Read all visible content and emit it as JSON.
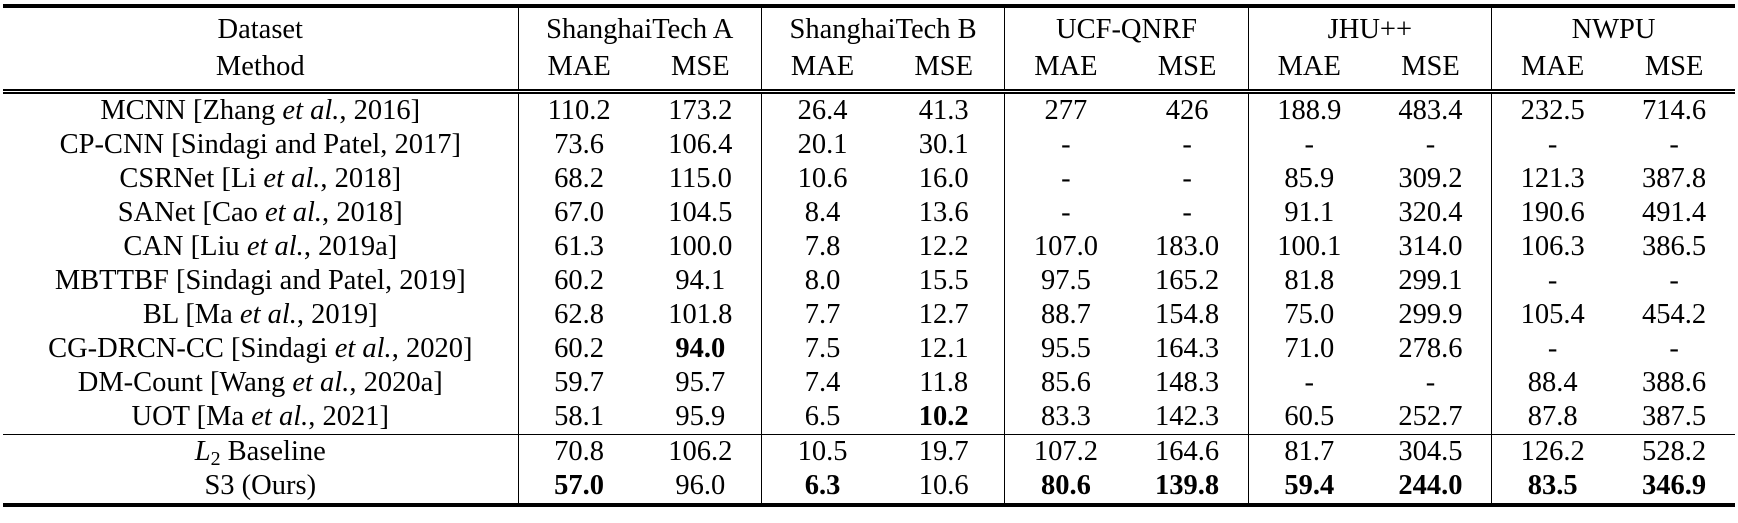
{
  "header": {
    "dataset_label": "Dataset",
    "method_label": "Method",
    "datasets": [
      "ShanghaiTech A",
      "ShanghaiTech B",
      "UCF-QNRF",
      "JHU++",
      "NWPU"
    ],
    "metrics": [
      "MAE",
      "MSE"
    ]
  },
  "rows": [
    {
      "pre": "MCNN [Zhang ",
      "et": "et al.",
      "post": ", 2016]",
      "values": [
        "110.2",
        "173.2",
        "26.4",
        "41.3",
        "277",
        "426",
        "188.9",
        "483.4",
        "232.5",
        "714.6"
      ],
      "bold": []
    },
    {
      "pre": "CP-CNN [Sindagi and Patel, 2017]",
      "et": "",
      "post": "",
      "values": [
        "73.6",
        "106.4",
        "20.1",
        "30.1",
        "-",
        "-",
        "-",
        "-",
        "-",
        "-"
      ],
      "bold": []
    },
    {
      "pre": "CSRNet [Li ",
      "et": "et al.",
      "post": ", 2018]",
      "values": [
        "68.2",
        "115.0",
        "10.6",
        "16.0",
        "-",
        "-",
        "85.9",
        "309.2",
        "121.3",
        "387.8"
      ],
      "bold": []
    },
    {
      "pre": "SANet [Cao ",
      "et": "et al.",
      "post": ", 2018]",
      "values": [
        "67.0",
        "104.5",
        "8.4",
        "13.6",
        "-",
        "-",
        "91.1",
        "320.4",
        "190.6",
        "491.4"
      ],
      "bold": []
    },
    {
      "pre": "CAN [Liu ",
      "et": "et al.",
      "post": ", 2019a]",
      "values": [
        "61.3",
        "100.0",
        "7.8",
        "12.2",
        "107.0",
        "183.0",
        "100.1",
        "314.0",
        "106.3",
        "386.5"
      ],
      "bold": []
    },
    {
      "pre": "MBTTBF [Sindagi and Patel, 2019]",
      "et": "",
      "post": "",
      "values": [
        "60.2",
        "94.1",
        "8.0",
        "15.5",
        "97.5",
        "165.2",
        "81.8",
        "299.1",
        "-",
        "-"
      ],
      "bold": []
    },
    {
      "pre": "BL [Ma ",
      "et": "et al.",
      "post": ", 2019]",
      "values": [
        "62.8",
        "101.8",
        "7.7",
        "12.7",
        "88.7",
        "154.8",
        "75.0",
        "299.9",
        "105.4",
        "454.2"
      ],
      "bold": []
    },
    {
      "pre": "CG-DRCN-CC [Sindagi ",
      "et": "et al.",
      "post": ", 2020]",
      "values": [
        "60.2",
        "94.0",
        "7.5",
        "12.1",
        "95.5",
        "164.3",
        "71.0",
        "278.6",
        "-",
        "-"
      ],
      "bold": [
        1
      ]
    },
    {
      "pre": "DM-Count [Wang ",
      "et": "et al.",
      "post": ", 2020a]",
      "values": [
        "59.7",
        "95.7",
        "7.4",
        "11.8",
        "85.6",
        "148.3",
        "-",
        "-",
        "88.4",
        "388.6"
      ],
      "bold": []
    },
    {
      "pre": "UOT [Ma ",
      "et": "et al.",
      "post": ", 2021]",
      "values": [
        "58.1",
        "95.9",
        "6.5",
        "10.2",
        "83.3",
        "142.3",
        "60.5",
        "252.7",
        "87.8",
        "387.5"
      ],
      "bold": [
        3
      ]
    }
  ],
  "baseline_row": {
    "label_main": "L",
    "label_sub": "2",
    "label_rest": " Baseline",
    "values": [
      "70.8",
      "106.2",
      "10.5",
      "19.7",
      "107.2",
      "164.6",
      "81.7",
      "304.5",
      "126.2",
      "528.2"
    ],
    "bold": []
  },
  "ours_row": {
    "label": "S3 (Ours)",
    "values": [
      "57.0",
      "96.0",
      "6.3",
      "10.6",
      "80.6",
      "139.8",
      "59.4",
      "244.0",
      "83.5",
      "346.9"
    ],
    "bold": [
      0,
      2,
      4,
      5,
      6,
      7,
      8,
      9
    ]
  }
}
